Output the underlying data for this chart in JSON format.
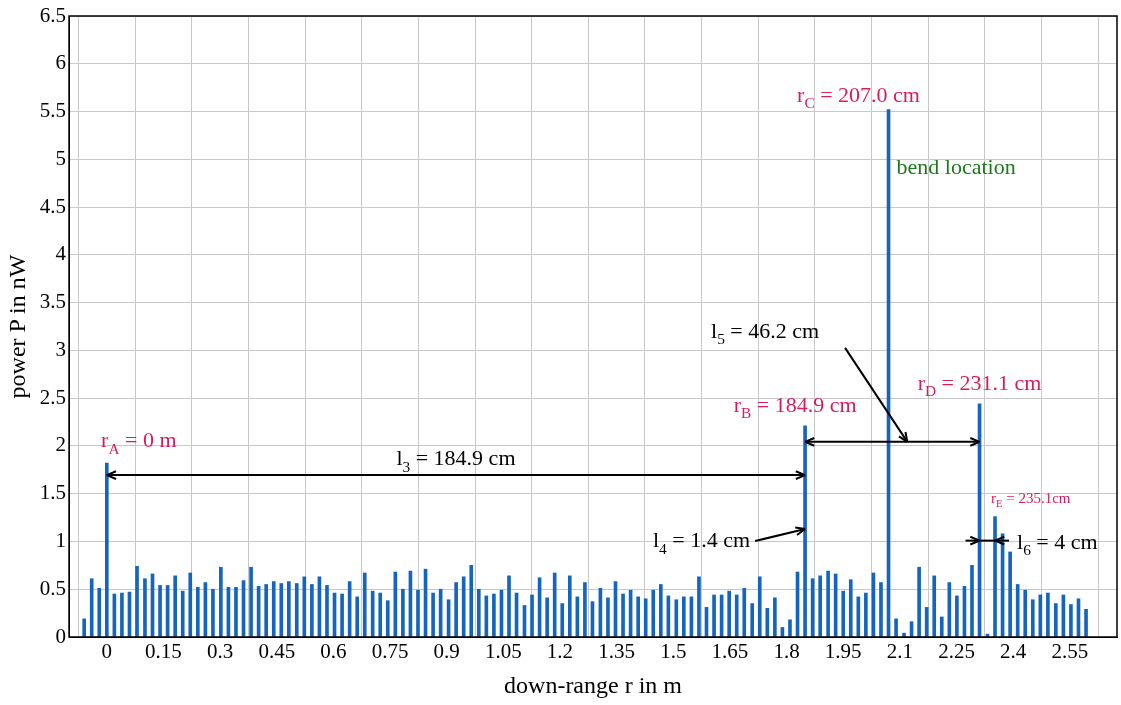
{
  "chart_data": {
    "type": "bar",
    "xlabel": "down-range r in m",
    "ylabel": "power P in nW",
    "x": [
      -0.06,
      -0.04,
      -0.02,
      0,
      0.02,
      0.04,
      0.06,
      0.08,
      0.101,
      0.121,
      0.141,
      0.161,
      0.181,
      0.201,
      0.221,
      0.241,
      0.261,
      0.281,
      0.302,
      0.322,
      0.342,
      0.362,
      0.382,
      0.402,
      0.422,
      0.442,
      0.462,
      0.482,
      0.503,
      0.523,
      0.543,
      0.563,
      0.583,
      0.603,
      0.623,
      0.643,
      0.663,
      0.683,
      0.704,
      0.724,
      0.744,
      0.764,
      0.784,
      0.804,
      0.824,
      0.844,
      0.864,
      0.884,
      0.905,
      0.925,
      0.945,
      0.965,
      0.985,
      1.005,
      1.025,
      1.045,
      1.065,
      1.085,
      1.106,
      1.126,
      1.146,
      1.166,
      1.186,
      1.206,
      1.226,
      1.246,
      1.266,
      1.286,
      1.307,
      1.327,
      1.347,
      1.367,
      1.387,
      1.407,
      1.427,
      1.447,
      1.467,
      1.487,
      1.508,
      1.528,
      1.548,
      1.568,
      1.588,
      1.608,
      1.628,
      1.648,
      1.668,
      1.688,
      1.709,
      1.729,
      1.749,
      1.769,
      1.789,
      1.809,
      1.829,
      1.849,
      1.869,
      1.889,
      1.91,
      1.93,
      1.95,
      1.97,
      1.99,
      2.01,
      2.03,
      2.05,
      2.07,
      2.09,
      2.111,
      2.131,
      2.151,
      2.171,
      2.191,
      2.211,
      2.231,
      2.251,
      2.271,
      2.291,
      2.311,
      2.332,
      2.352,
      2.372,
      2.392,
      2.412,
      2.432,
      2.452,
      2.472,
      2.492,
      2.513,
      2.533,
      2.553,
      2.573,
      2.593
    ],
    "values": [
      0.19,
      0.61,
      0.51,
      1.82,
      0.45,
      0.46,
      0.47,
      0.74,
      0.61,
      0.66,
      0.54,
      0.54,
      0.64,
      0.48,
      0.67,
      0.52,
      0.57,
      0.5,
      0.73,
      0.52,
      0.52,
      0.59,
      0.73,
      0.53,
      0.55,
      0.58,
      0.56,
      0.58,
      0.56,
      0.63,
      0.55,
      0.63,
      0.54,
      0.46,
      0.45,
      0.58,
      0.42,
      0.67,
      0.48,
      0.46,
      0.38,
      0.68,
      0.5,
      0.69,
      0.49,
      0.71,
      0.46,
      0.5,
      0.39,
      0.57,
      0.63,
      0.75,
      0.5,
      0.43,
      0.45,
      0.49,
      0.64,
      0.46,
      0.33,
      0.44,
      0.62,
      0.41,
      0.67,
      0.35,
      0.64,
      0.42,
      0.57,
      0.37,
      0.51,
      0.41,
      0.58,
      0.45,
      0.49,
      0.42,
      0.4,
      0.49,
      0.55,
      0.43,
      0.39,
      0.42,
      0.42,
      0.63,
      0.31,
      0.44,
      0.44,
      0.48,
      0.44,
      0.51,
      0.35,
      0.63,
      0.3,
      0.41,
      0.1,
      0.18,
      0.68,
      2.21,
      0.61,
      0.64,
      0.69,
      0.66,
      0.48,
      0.6,
      0.42,
      0.46,
      0.67,
      0.57,
      5.52,
      0.19,
      0.04,
      0.16,
      0.73,
      0.31,
      0.64,
      0.21,
      0.57,
      0.43,
      0.53,
      0.75,
      2.44,
      0.03,
      1.26,
      1.08,
      0.89,
      0.55,
      0.49,
      0.39,
      0.44,
      0.46,
      0.35,
      0.44,
      0.34,
      0.4,
      0.29
    ],
    "color": "#1565c0",
    "xlim": [
      -0.1,
      2.675
    ],
    "xticks": [
      0,
      0.15,
      0.3,
      0.45,
      0.6,
      0.75,
      0.9,
      1.05,
      1.2,
      1.35,
      1.5,
      1.65,
      1.8,
      1.95,
      2.1,
      2.25,
      2.4,
      2.55
    ],
    "ylim": [
      0,
      6.5
    ],
    "yticks": [
      0,
      0.5,
      1,
      1.5,
      2,
      2.5,
      3,
      3.5,
      4,
      4.5,
      5,
      5.5,
      6,
      6.5
    ],
    "grid": true,
    "annotations": [
      {
        "text": "r$_{A}$ = 0 m",
        "x": 0,
        "y": 1.82
      },
      {
        "text": "r$_{B}$ = 184.9 cm",
        "x": 1.849,
        "y": 2.21
      },
      {
        "text": "r$_{C}$ = 207.0 cm",
        "x": 2.07,
        "y": 5.52
      },
      {
        "text": "bend location",
        "x": 2.07,
        "y": 5.1
      },
      {
        "text": "r$_{D}$ = 231.1 cm",
        "x": 2.311,
        "y": 2.44
      },
      {
        "text": "r$_{E}$ = 235.1cm",
        "x": 2.352,
        "y": 1.26
      },
      "l$_{3}$ = 184.9 cm",
      {
        "text": "l$_{4}$ = 1.4 cm",
        "x": 1.849,
        "y": 1.13
      },
      "l$_{5}$ = 46.2 cm",
      "l$_{6}$ = 4 cm"
    ]
  }
}
